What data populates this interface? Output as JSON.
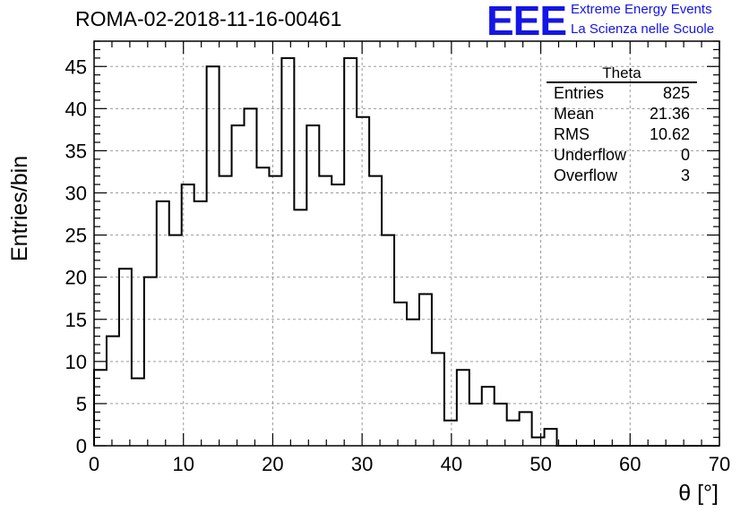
{
  "header": {
    "title": "ROMA-02-2018-11-16-00461",
    "logo": "EEE",
    "logo_line1": "Extreme Energy Events",
    "logo_line2": "La Scienza nelle Scuole",
    "logo_color": "#1515e6"
  },
  "stats_box": {
    "title": "Theta",
    "rows": [
      {
        "label": "Entries",
        "value": "825"
      },
      {
        "label": "Mean",
        "value": "21.36"
      },
      {
        "label": "RMS",
        "value": "10.62"
      },
      {
        "label": "Underflow",
        "value": "0"
      },
      {
        "label": "Overflow",
        "value": "3"
      }
    ]
  },
  "chart_data": {
    "type": "bar",
    "style": "step-histogram",
    "xlabel": "θ [°]",
    "ylabel": "Entries/bin",
    "xlim": [
      0,
      70
    ],
    "ylim": [
      0,
      48
    ],
    "bin_width": 1.4,
    "x_ticks": [
      0,
      10,
      20,
      30,
      40,
      50,
      60,
      70
    ],
    "y_ticks": [
      0,
      5,
      10,
      15,
      20,
      25,
      30,
      35,
      40,
      45
    ],
    "grid": true,
    "values": [
      9,
      13,
      21,
      8,
      20,
      29,
      25,
      31,
      29,
      45,
      32,
      38,
      40,
      33,
      32,
      46,
      28,
      38,
      32,
      31,
      46,
      39,
      32,
      25,
      17,
      15,
      18,
      11,
      3,
      9,
      5,
      7,
      5,
      3,
      4,
      1,
      2,
      0,
      0,
      0,
      0,
      0,
      0,
      0,
      0,
      0,
      0,
      0,
      0,
      0
    ]
  }
}
